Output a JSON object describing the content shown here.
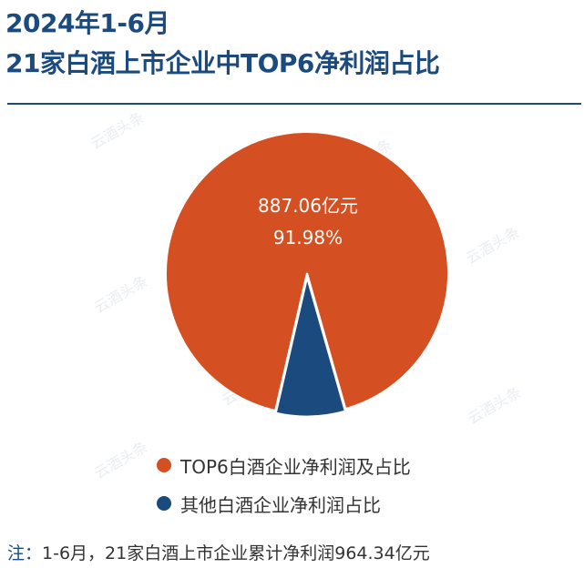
{
  "title": {
    "line1": "2024年1-6月",
    "line2": "21家白酒上市企业中TOP6净利润占比"
  },
  "watermark": "云酒头条",
  "chart_data": {
    "type": "pie",
    "title": "2024年1-6月 21家白酒上市企业中TOP6净利润占比",
    "slices": [
      {
        "name": "TOP6白酒企业净利润及占比",
        "value": 887.06,
        "percent": 91.98,
        "color": "#d44f21",
        "value_label": "887.06亿元",
        "percent_label": "91.98%"
      },
      {
        "name": "其他白酒企业净利润占比",
        "value": 77.28,
        "percent": 8.02,
        "color": "#1b4b7e"
      }
    ],
    "legend_position": "bottom"
  },
  "legend": {
    "items": [
      {
        "label": "TOP6白酒企业净利润及占比",
        "color": "#d44f21"
      },
      {
        "label": "其他白酒企业净利润占比",
        "color": "#1b4b7e"
      }
    ]
  },
  "note": {
    "label": "注：",
    "text": "1-6月，21家白酒上市企业累计净利润964.34亿元"
  }
}
